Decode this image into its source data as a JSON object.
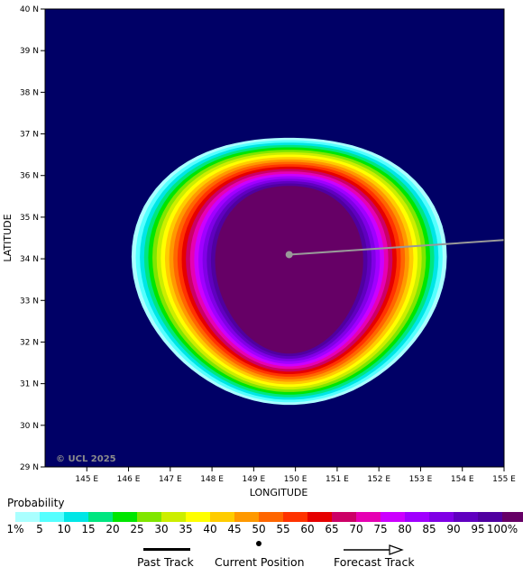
{
  "map": {
    "copyright": "© UCL 2025",
    "x_axis_title": "LONGITUDE",
    "y_axis_title": "LATITUDE",
    "x_ticks": [
      "145 E",
      "146 E",
      "147 E",
      "148 E",
      "149 E",
      "150 E",
      "151 E",
      "152 E",
      "153 E",
      "154 E",
      "155 E"
    ],
    "y_ticks": [
      "40 N",
      "39 N",
      "38 N",
      "37 N",
      "36 N",
      "35 N",
      "34 N",
      "33 N",
      "32 N",
      "31 N",
      "30 N",
      "29 N"
    ],
    "lon_range": [
      144,
      155
    ],
    "lat_range": [
      29,
      40
    ],
    "background_color": "#000066",
    "current_position": {
      "lon": 149.85,
      "lat": 34.1
    },
    "forecast_track_end": {
      "lon": 155,
      "lat": 34.45
    }
  },
  "legend": {
    "title": "Probability",
    "colors": [
      "#aaffff",
      "#55ffff",
      "#00e6e6",
      "#00e680",
      "#00e600",
      "#80e600",
      "#ccee00",
      "#ffff00",
      "#ffcc00",
      "#ff9900",
      "#ff6600",
      "#ff3300",
      "#e60000",
      "#cc0066",
      "#e600b3",
      "#cc00ff",
      "#a000ff",
      "#8000e6",
      "#6000c0",
      "#5000a0",
      "#660066"
    ],
    "ticks": [
      "1%",
      "5",
      "10",
      "15",
      "20",
      "25",
      "30",
      "35",
      "40",
      "45",
      "50",
      "55",
      "60",
      "65",
      "70",
      "75",
      "80",
      "85",
      "90",
      "95",
      "100%"
    ],
    "past_track_label": "Past Track",
    "current_position_label": "Current Position",
    "forecast_track_label": "Forecast Track"
  }
}
